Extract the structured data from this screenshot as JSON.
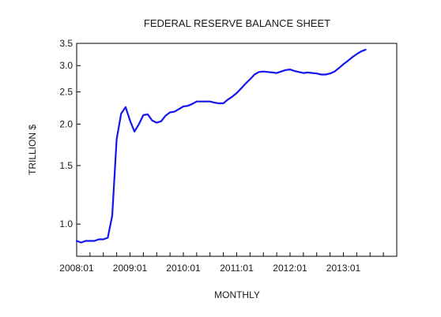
{
  "chart_data": {
    "type": "line",
    "title": "FEDERAL RESERVE BALANCE SHEET",
    "xlabel": "MONTHLY",
    "ylabel": "TRILLION $",
    "y_scale": "log",
    "ylim": [
      0.8,
      3.5
    ],
    "xlim": [
      "2008-01",
      "2013-12"
    ],
    "x_ticks": [
      "2008:01",
      "2009:01",
      "2010:01",
      "2011:01",
      "2012:01",
      "2013:01"
    ],
    "y_ticks": [
      "1.0",
      "1.5",
      "2.0",
      "2.5",
      "3.0",
      "3.5"
    ],
    "line_color": "#1515ee",
    "grid": false,
    "series": [
      {
        "x": [
          "2008-01",
          "2008-02",
          "2008-03",
          "2008-04",
          "2008-05",
          "2008-06",
          "2008-07",
          "2008-08",
          "2008-09",
          "2008-10",
          "2008-11",
          "2008-12",
          "2009-01",
          "2009-02",
          "2009-03",
          "2009-04",
          "2009-05",
          "2009-06",
          "2009-07",
          "2009-08",
          "2009-09",
          "2009-10",
          "2009-11",
          "2009-12",
          "2010-01",
          "2010-02",
          "2010-03",
          "2010-04",
          "2010-05",
          "2010-06",
          "2010-07",
          "2010-08",
          "2010-09",
          "2010-10",
          "2010-11",
          "2010-12",
          "2011-01",
          "2011-02",
          "2011-03",
          "2011-04",
          "2011-05",
          "2011-06",
          "2011-07",
          "2011-08",
          "2011-09",
          "2011-10",
          "2011-11",
          "2011-12",
          "2012-01",
          "2012-02",
          "2012-03",
          "2012-04",
          "2012-05",
          "2012-06",
          "2012-07",
          "2012-08",
          "2012-09",
          "2012-10",
          "2012-11",
          "2012-12",
          "2013-01",
          "2013-02",
          "2013-03",
          "2013-04",
          "2013-05",
          "2013-06"
        ],
        "values": [
          0.89,
          0.88,
          0.89,
          0.89,
          0.89,
          0.9,
          0.9,
          0.91,
          1.06,
          1.8,
          2.15,
          2.25,
          2.05,
          1.9,
          2.0,
          2.13,
          2.14,
          2.05,
          2.02,
          2.04,
          2.12,
          2.17,
          2.18,
          2.22,
          2.26,
          2.27,
          2.3,
          2.34,
          2.34,
          2.34,
          2.34,
          2.32,
          2.31,
          2.31,
          2.37,
          2.42,
          2.48,
          2.56,
          2.65,
          2.73,
          2.82,
          2.87,
          2.88,
          2.87,
          2.86,
          2.85,
          2.88,
          2.91,
          2.92,
          2.89,
          2.87,
          2.85,
          2.86,
          2.85,
          2.84,
          2.82,
          2.82,
          2.84,
          2.88,
          2.95,
          3.03,
          3.1,
          3.18,
          3.25,
          3.31,
          3.35
        ]
      }
    ]
  }
}
